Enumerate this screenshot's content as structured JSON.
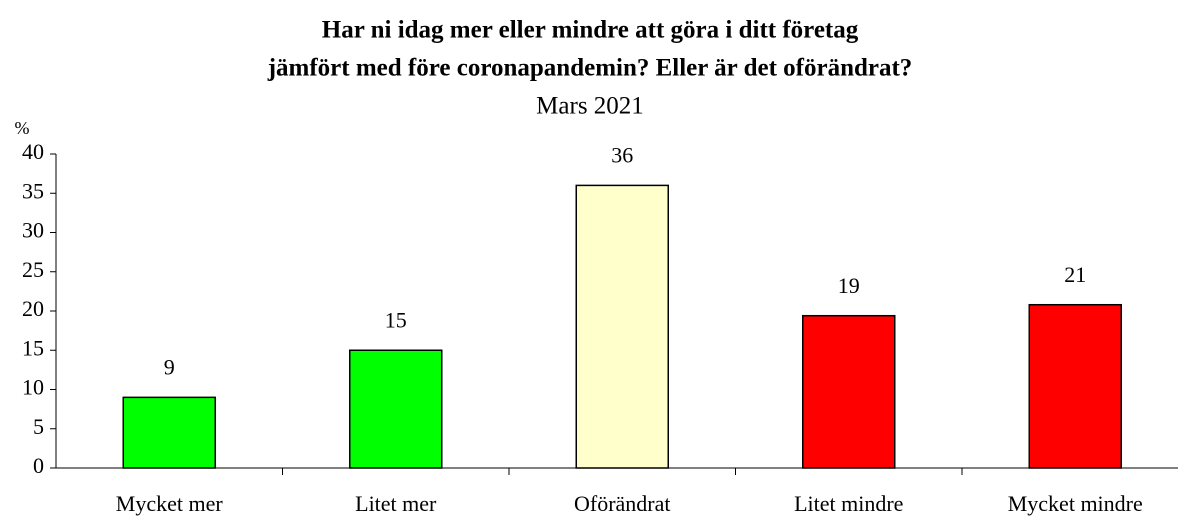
{
  "chart_data": {
    "type": "bar",
    "title": [
      "Har ni idag mer eller mindre att göra i ditt företag",
      "jämfört med före coronapandemin? Eller är det oförändrat?"
    ],
    "subtitle": "Mars 2021",
    "y_label": "%",
    "categories": [
      "Mycket mer",
      "Litet mer",
      "Oförändrat",
      "Litet mindre",
      "Mycket mindre"
    ],
    "values": [
      9,
      15,
      36,
      19.4,
      20.8
    ],
    "value_labels": [
      "9",
      "15",
      "36",
      "19",
      "21"
    ],
    "colors": [
      "#00ff00",
      "#00ff00",
      "#ffffcc",
      "#ff0000",
      "#ff0000"
    ],
    "ylim": [
      0,
      40
    ],
    "yticks": [
      0,
      5,
      10,
      15,
      20,
      25,
      30,
      35,
      40
    ],
    "grid": false
  }
}
